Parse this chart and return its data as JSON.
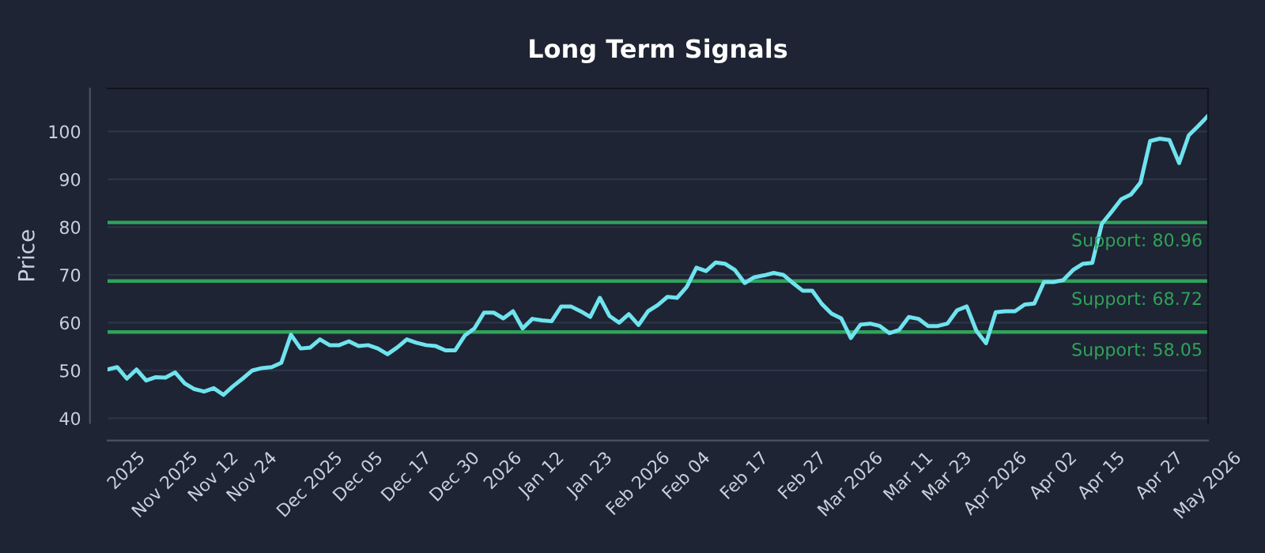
{
  "chart_data": {
    "type": "line",
    "title": "Long Term Signals",
    "ylabel": "Price",
    "categories": [
      null,
      null,
      "2025",
      null,
      null,
      null,
      "Nov 2025",
      null,
      null,
      null,
      null,
      "Nov 12",
      null,
      null,
      null,
      "Nov 24",
      null,
      null,
      null,
      null,
      null,
      "Dec 2025",
      null,
      null,
      null,
      null,
      "Dec 05",
      null,
      null,
      null,
      null,
      "Dec 17",
      null,
      null,
      null,
      null,
      "Dec 30",
      null,
      null,
      null,
      null,
      "2026",
      null,
      null,
      null,
      "Jan 12",
      null,
      null,
      null,
      null,
      "Jan 23",
      null,
      null,
      null,
      null,
      "Feb 2026",
      null,
      null,
      null,
      null,
      "Feb 04",
      null,
      null,
      null,
      null,
      null,
      "Feb 17",
      null,
      null,
      null,
      null,
      null,
      "Feb 27",
      null,
      null,
      null,
      null,
      "Mar 2026",
      null,
      null,
      null,
      null,
      null,
      "Mar 11",
      null,
      null,
      null,
      "Mar 23",
      null,
      null,
      null,
      null,
      "Apr 2026",
      null,
      null,
      null,
      null,
      null,
      "Apr 02",
      null,
      null,
      null,
      null,
      "Apr 15",
      null,
      null,
      null,
      null,
      null,
      "Apr 27",
      null,
      null,
      null,
      null,
      "May 2026"
    ],
    "series": [
      {
        "color": "#6fe3ee",
        "values": [
          50.2,
          50.7,
          48.3,
          50.2,
          47.9,
          48.6,
          48.5,
          49.6,
          47.3,
          46.1,
          45.6,
          46.3,
          44.9,
          46.7,
          48.3,
          50.0,
          50.5,
          50.7,
          51.6,
          57.5,
          54.6,
          54.8,
          56.5,
          55.3,
          55.3,
          56.1,
          55.1,
          55.3,
          54.6,
          53.4,
          54.8,
          56.5,
          55.8,
          55.3,
          55.1,
          54.2,
          54.2,
          57.3,
          58.8,
          62.1,
          62.1,
          60.9,
          62.4,
          58.8,
          60.8,
          60.5,
          60.3,
          63.4,
          63.4,
          62.4,
          61.2,
          65.2,
          61.4,
          60.0,
          61.8,
          59.5,
          62.4,
          63.7,
          65.4,
          65.2,
          67.5,
          71.5,
          70.8,
          72.6,
          72.3,
          71.0,
          68.3,
          69.5,
          69.9,
          70.4,
          70.0,
          68.3,
          66.7,
          66.7,
          63.9,
          61.9,
          60.9,
          56.8,
          59.6,
          59.8,
          59.3,
          57.8,
          58.5,
          61.2,
          60.8,
          59.3,
          59.3,
          59.8,
          62.6,
          63.4,
          58.3,
          55.7,
          62.2,
          62.4,
          62.4,
          63.8,
          64.0,
          68.5,
          68.5,
          68.9,
          71.0,
          72.3,
          72.5,
          80.7,
          83.2,
          85.8,
          86.8,
          89.3,
          98.0,
          98.5,
          98.2,
          93.4,
          99.2,
          101.2,
          103.3
        ]
      }
    ],
    "ylim": [
      39,
      109
    ],
    "yticks": [
      40,
      50,
      60,
      70,
      80,
      90,
      100
    ],
    "ref_lines": [
      {
        "axis": "y",
        "value": 80.96,
        "label": "Support: 80.96",
        "color": "#2fa35a"
      },
      {
        "axis": "y",
        "value": 68.72,
        "label": "Support: 68.72",
        "color": "#2fa35a"
      },
      {
        "axis": "y",
        "value": 58.05,
        "label": "Support: 58.05",
        "color": "#2fa35a"
      }
    ],
    "grid": "y",
    "marker": "none",
    "line_style": "solid",
    "legend": false
  }
}
